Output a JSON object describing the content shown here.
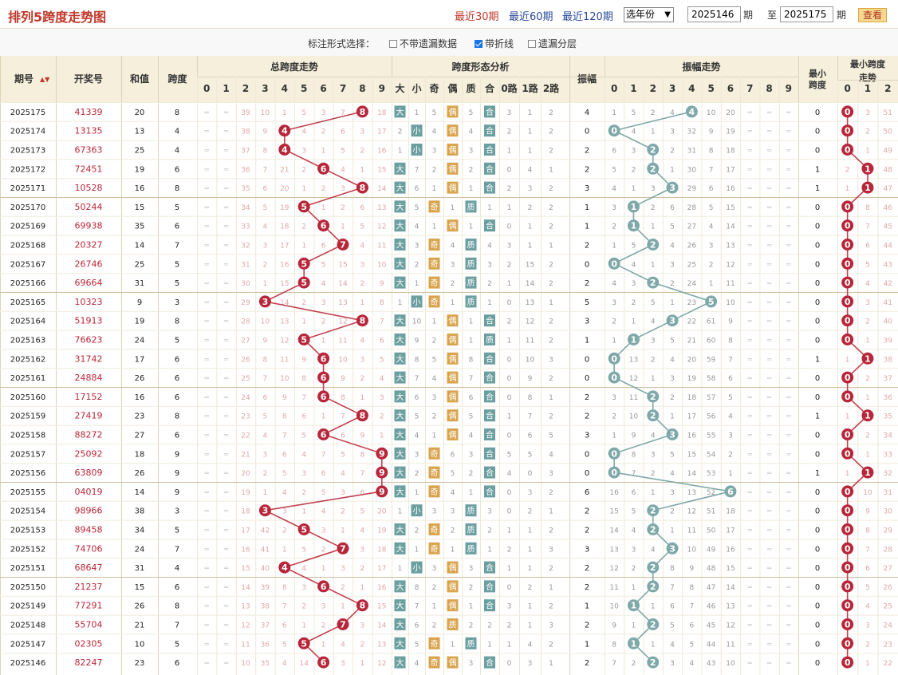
{
  "title": "排列5跨度走势图",
  "links": [
    {
      "label": "最近30期",
      "active": true
    },
    {
      "label": "最近60期",
      "active": false
    },
    {
      "label": "最近120期",
      "active": false
    }
  ],
  "year_select": "选年份",
  "period_from": "2025146",
  "period_to": "2025175",
  "label_qi": "期",
  "label_zhi": "至",
  "query_button": "查看",
  "options_label": "标注形式选择：",
  "options": [
    {
      "label": "不带遗漏数据",
      "checked": false
    },
    {
      "label": "带折线",
      "checked": true
    },
    {
      "label": "遗漏分层",
      "checked": false
    }
  ],
  "headers": {
    "period": "期号",
    "sort_icon": "sort-arrows-icon",
    "draw": "开奖号",
    "sum": "和值",
    "span": "跨度",
    "span_trend": "总跨度走势",
    "shape": "跨度形态分析",
    "amp": "振幅",
    "amp_trend": "振幅走势",
    "min_span": "最小跨度",
    "min_trend": "最小跨度走势"
  },
  "digits": [
    "0",
    "1",
    "2",
    "3",
    "4",
    "5",
    "6",
    "7",
    "8",
    "9"
  ],
  "shape_cols": [
    "大",
    "小",
    "奇",
    "偶",
    "质",
    "合",
    "0路",
    "1路",
    "2路"
  ],
  "min_digits": [
    "0",
    "1",
    "2"
  ],
  "colors": {
    "red": "#b8263a",
    "teal": "#7fa8a8",
    "big": "#6b9fa0",
    "odd": "#d9a44d",
    "grid": "#e9dfc8",
    "header": "#f5efdb"
  },
  "rows": [
    {
      "p": "2025175",
      "d": "41339",
      "s": "20",
      "k": "8",
      "ko": [
        2,
        2,
        39,
        10,
        1,
        5,
        3,
        7,
        0,
        18
      ],
      "sh": [
        "大",
        "1",
        "5",
        "偶",
        "5",
        "合",
        "3",
        "1",
        "2"
      ],
      "a": "4",
      "ao": [
        1,
        5,
        2,
        4,
        0,
        10,
        20,
        2,
        2,
        2
      ],
      "m": "0",
      "mo": [
        0,
        3,
        51
      ]
    },
    {
      "p": "2025174",
      "d": "13135",
      "s": "13",
      "k": "4",
      "ko": [
        2,
        2,
        38,
        9,
        0,
        4,
        2,
        6,
        3,
        17
      ],
      "sh": [
        "2",
        "小",
        "4",
        "偶",
        "4",
        "合",
        "2",
        "1",
        "2"
      ],
      "a": "0",
      "ao": [
        0,
        4,
        1,
        3,
        32,
        9,
        19,
        2,
        2,
        2
      ],
      "m": "0",
      "mo": [
        0,
        2,
        50
      ]
    },
    {
      "p": "2025173",
      "d": "67363",
      "s": "25",
      "k": "4",
      "ko": [
        2,
        2,
        37,
        8,
        0,
        3,
        1,
        5,
        2,
        16
      ],
      "sh": [
        "1",
        "小",
        "3",
        "偶",
        "3",
        "合",
        "1",
        "1",
        "2"
      ],
      "a": "2",
      "ao": [
        6,
        3,
        0,
        2,
        31,
        8,
        18,
        2,
        2,
        2
      ],
      "m": "0",
      "mo": [
        0,
        1,
        49
      ]
    },
    {
      "p": "2025172",
      "d": "72451",
      "s": "19",
      "k": "6",
      "ko": [
        2,
        2,
        36,
        7,
        21,
        2,
        0,
        4,
        1,
        15
      ],
      "sh": [
        "大",
        "7",
        "2",
        "偶",
        "2",
        "合",
        "0",
        "4",
        "1"
      ],
      "a": "2",
      "ao": [
        5,
        2,
        0,
        1,
        30,
        7,
        17,
        2,
        2,
        2
      ],
      "m": "1",
      "mo": [
        2,
        0,
        48
      ]
    },
    {
      "p": "2025171",
      "d": "10528",
      "s": "16",
      "k": "8",
      "ko": [
        2,
        2,
        35,
        6,
        20,
        1,
        2,
        3,
        0,
        14
      ],
      "sh": [
        "大",
        "6",
        "1",
        "偶",
        "1",
        "合",
        "2",
        "3",
        "2"
      ],
      "a": "3",
      "ao": [
        4,
        1,
        3,
        0,
        29,
        6,
        16,
        2,
        2,
        2
      ],
      "m": "1",
      "mo": [
        1,
        0,
        47
      ]
    },
    {
      "p": "2025170",
      "d": "50244",
      "s": "15",
      "k": "5",
      "ko": [
        2,
        2,
        34,
        5,
        19,
        0,
        1,
        2,
        6,
        13
      ],
      "sh": [
        "大",
        "5",
        "奇",
        "1",
        "质",
        "1",
        "1",
        "2",
        "2"
      ],
      "a": "1",
      "ao": [
        3,
        0,
        2,
        6,
        28,
        5,
        15,
        2,
        2,
        2
      ],
      "m": "0",
      "mo": [
        0,
        8,
        46
      ]
    },
    {
      "p": "2025169",
      "d": "69938",
      "s": "35",
      "k": "6",
      "ko": [
        2,
        2,
        33,
        4,
        18,
        2,
        0,
        1,
        5,
        12
      ],
      "sh": [
        "大",
        "4",
        "1",
        "偶",
        "1",
        "合",
        "0",
        "1",
        "2"
      ],
      "a": "1",
      "ao": [
        2,
        0,
        1,
        5,
        27,
        4,
        14,
        2,
        2,
        2
      ],
      "m": "0",
      "mo": [
        0,
        7,
        45
      ]
    },
    {
      "p": "2025168",
      "d": "20327",
      "s": "14",
      "k": "7",
      "ko": [
        2,
        2,
        32,
        3,
        17,
        1,
        6,
        0,
        4,
        11
      ],
      "sh": [
        "大",
        "3",
        "奇",
        "4",
        "质",
        "4",
        "3",
        "1",
        "1"
      ],
      "a": "2",
      "ao": [
        1,
        5,
        0,
        4,
        26,
        3,
        13,
        2,
        2,
        2
      ],
      "m": "0",
      "mo": [
        0,
        6,
        44
      ]
    },
    {
      "p": "2025167",
      "d": "26746",
      "s": "25",
      "k": "5",
      "ko": [
        2,
        2,
        31,
        2,
        16,
        0,
        5,
        15,
        3,
        10
      ],
      "sh": [
        "大",
        "2",
        "奇",
        "3",
        "质",
        "3",
        "2",
        "15",
        "2"
      ],
      "a": "0",
      "ao": [
        0,
        4,
        1,
        3,
        25,
        2,
        12,
        2,
        2,
        2
      ],
      "m": "0",
      "mo": [
        0,
        5,
        43
      ]
    },
    {
      "p": "2025166",
      "d": "69664",
      "s": "31",
      "k": "5",
      "ko": [
        2,
        2,
        30,
        1,
        15,
        0,
        4,
        14,
        2,
        9
      ],
      "sh": [
        "大",
        "1",
        "奇",
        "2",
        "质",
        "2",
        "1",
        "14",
        "2"
      ],
      "a": "2",
      "ao": [
        4,
        3,
        0,
        2,
        24,
        1,
        11,
        2,
        2,
        2
      ],
      "m": "0",
      "mo": [
        0,
        4,
        42
      ]
    },
    {
      "p": "2025165",
      "d": "10323",
      "s": "9",
      "k": "3",
      "ko": [
        2,
        2,
        29,
        0,
        14,
        2,
        3,
        13,
        1,
        8
      ],
      "sh": [
        "1",
        "小",
        "奇",
        "1",
        "质",
        "1",
        "0",
        "13",
        "1"
      ],
      "a": "5",
      "ao": [
        3,
        2,
        5,
        1,
        23,
        0,
        10,
        2,
        2,
        2
      ],
      "m": "0",
      "mo": [
        0,
        3,
        41
      ]
    },
    {
      "p": "2025164",
      "d": "51913",
      "s": "19",
      "k": "8",
      "ko": [
        2,
        2,
        28,
        10,
        13,
        1,
        2,
        12,
        0,
        7
      ],
      "sh": [
        "大",
        "10",
        "1",
        "偶",
        "1",
        "合",
        "2",
        "12",
        "2"
      ],
      "a": "3",
      "ao": [
        2,
        1,
        4,
        0,
        22,
        61,
        9,
        2,
        2,
        2
      ],
      "m": "0",
      "mo": [
        0,
        2,
        40
      ]
    },
    {
      "p": "2025163",
      "d": "76623",
      "s": "24",
      "k": "5",
      "ko": [
        2,
        2,
        27,
        9,
        12,
        0,
        1,
        11,
        4,
        6
      ],
      "sh": [
        "大",
        "9",
        "2",
        "偶",
        "1",
        "质",
        "1",
        "11",
        "2"
      ],
      "a": "1",
      "ao": [
        1,
        0,
        3,
        5,
        21,
        60,
        8,
        2,
        2,
        2
      ],
      "m": "0",
      "mo": [
        0,
        1,
        39
      ]
    },
    {
      "p": "2025162",
      "d": "31742",
      "s": "17",
      "k": "6",
      "ko": [
        2,
        2,
        26,
        8,
        11,
        9,
        0,
        10,
        3,
        5
      ],
      "sh": [
        "大",
        "8",
        "5",
        "偶",
        "8",
        "合",
        "0",
        "10",
        "3"
      ],
      "a": "0",
      "ao": [
        0,
        13,
        2,
        4,
        20,
        59,
        7,
        2,
        2,
        2
      ],
      "m": "1",
      "mo": [
        1,
        0,
        38
      ]
    },
    {
      "p": "2025161",
      "d": "24884",
      "s": "26",
      "k": "6",
      "ko": [
        2,
        2,
        25,
        7,
        10,
        8,
        0,
        9,
        2,
        4
      ],
      "sh": [
        "大",
        "7",
        "4",
        "偶",
        "7",
        "合",
        "0",
        "9",
        "2"
      ],
      "a": "0",
      "ao": [
        0,
        12,
        1,
        3,
        19,
        58,
        6,
        2,
        2,
        2
      ],
      "m": "0",
      "mo": [
        0,
        2,
        37
      ]
    },
    {
      "p": "2025160",
      "d": "17152",
      "s": "16",
      "k": "6",
      "ko": [
        2,
        2,
        24,
        6,
        9,
        7,
        0,
        8,
        1,
        3
      ],
      "sh": [
        "大",
        "6",
        "3",
        "偶",
        "6",
        "合",
        "0",
        "8",
        "1"
      ],
      "a": "2",
      "ao": [
        3,
        11,
        0,
        2,
        18,
        57,
        5,
        2,
        2,
        2
      ],
      "m": "0",
      "mo": [
        0,
        1,
        36
      ]
    },
    {
      "p": "2025159",
      "d": "27419",
      "s": "23",
      "k": "8",
      "ko": [
        2,
        2,
        23,
        5,
        8,
        6,
        1,
        7,
        0,
        2
      ],
      "sh": [
        "大",
        "5",
        "2",
        "偶",
        "5",
        "合",
        "1",
        "7",
        "2"
      ],
      "a": "2",
      "ao": [
        2,
        10,
        0,
        1,
        17,
        56,
        4,
        2,
        2,
        2
      ],
      "m": "1",
      "mo": [
        1,
        0,
        35
      ]
    },
    {
      "p": "2025158",
      "d": "88272",
      "s": "27",
      "k": "6",
      "ko": [
        2,
        2,
        22,
        4,
        7,
        5,
        0,
        6,
        9,
        1
      ],
      "sh": [
        "大",
        "4",
        "1",
        "偶",
        "4",
        "合",
        "0",
        "6",
        "5"
      ],
      "a": "3",
      "ao": [
        1,
        9,
        4,
        0,
        16,
        55,
        3,
        2,
        2,
        2
      ],
      "m": "0",
      "mo": [
        0,
        2,
        34
      ]
    },
    {
      "p": "2025157",
      "d": "25092",
      "s": "18",
      "k": "9",
      "ko": [
        2,
        2,
        21,
        3,
        6,
        4,
        7,
        5,
        8,
        0
      ],
      "sh": [
        "大",
        "3",
        "奇",
        "6",
        "3",
        "合",
        "5",
        "5",
        "4"
      ],
      "a": "0",
      "ao": [
        0,
        8,
        3,
        5,
        15,
        54,
        2,
        2,
        2,
        2
      ],
      "m": "0",
      "mo": [
        0,
        1,
        33
      ]
    },
    {
      "p": "2025156",
      "d": "63809",
      "s": "26",
      "k": "9",
      "ko": [
        2,
        2,
        20,
        2,
        5,
        3,
        6,
        4,
        7,
        0
      ],
      "sh": [
        "大",
        "2",
        "奇",
        "5",
        "2",
        "合",
        "4",
        "0",
        "3"
      ],
      "a": "0",
      "ao": [
        0,
        7,
        2,
        4,
        14,
        53,
        1,
        2,
        2,
        2
      ],
      "m": "1",
      "mo": [
        1,
        0,
        32
      ]
    },
    {
      "p": "2025155",
      "d": "04019",
      "s": "14",
      "k": "9",
      "ko": [
        2,
        2,
        19,
        1,
        4,
        2,
        5,
        3,
        6,
        0
      ],
      "sh": [
        "大",
        "1",
        "奇",
        "4",
        "1",
        "合",
        "0",
        "3",
        "2"
      ],
      "a": "6",
      "ao": [
        16,
        6,
        1,
        3,
        13,
        52,
        0,
        2,
        2,
        2
      ],
      "m": "0",
      "mo": [
        0,
        10,
        31
      ]
    },
    {
      "p": "2025154",
      "d": "98966",
      "s": "38",
      "k": "3",
      "ko": [
        2,
        2,
        18,
        0,
        3,
        1,
        4,
        2,
        5,
        20
      ],
      "sh": [
        "1",
        "小",
        "3",
        "3",
        "质",
        "3",
        "0",
        "2",
        "1"
      ],
      "a": "2",
      "ao": [
        15,
        5,
        0,
        2,
        12,
        51,
        18,
        2,
        2,
        2
      ],
      "m": "0",
      "mo": [
        0,
        9,
        30
      ]
    },
    {
      "p": "2025153",
      "d": "89458",
      "s": "34",
      "k": "5",
      "ko": [
        2,
        2,
        17,
        42,
        2,
        0,
        3,
        1,
        4,
        19
      ],
      "sh": [
        "大",
        "2",
        "奇",
        "2",
        "质",
        "2",
        "1",
        "1",
        "2"
      ],
      "a": "2",
      "ao": [
        14,
        4,
        0,
        1,
        11,
        50,
        17,
        2,
        2,
        2
      ],
      "m": "0",
      "mo": [
        0,
        8,
        29
      ]
    },
    {
      "p": "2025152",
      "d": "74706",
      "s": "24",
      "k": "7",
      "ko": [
        2,
        2,
        16,
        41,
        1,
        5,
        2,
        0,
        3,
        18
      ],
      "sh": [
        "大",
        "1",
        "奇",
        "1",
        "质",
        "1",
        "2",
        "1",
        "3"
      ],
      "a": "3",
      "ao": [
        13,
        3,
        4,
        0,
        10,
        49,
        16,
        2,
        2,
        2
      ],
      "m": "0",
      "mo": [
        0,
        7,
        28
      ]
    },
    {
      "p": "2025151",
      "d": "68647",
      "s": "31",
      "k": "4",
      "ko": [
        2,
        2,
        15,
        40,
        0,
        4,
        1,
        3,
        2,
        17
      ],
      "sh": [
        "1",
        "小",
        "3",
        "偶",
        "3",
        "合",
        "1",
        "1",
        "2"
      ],
      "a": "2",
      "ao": [
        12,
        2,
        0,
        8,
        9,
        48,
        15,
        2,
        2,
        2
      ],
      "m": "0",
      "mo": [
        0,
        6,
        27
      ]
    },
    {
      "p": "2025150",
      "d": "21237",
      "s": "15",
      "k": "6",
      "ko": [
        2,
        2,
        14,
        39,
        8,
        3,
        0,
        2,
        1,
        16
      ],
      "sh": [
        "大",
        "8",
        "2",
        "偶",
        "2",
        "合",
        "0",
        "2",
        "1"
      ],
      "a": "2",
      "ao": [
        11,
        1,
        0,
        7,
        8,
        47,
        14,
        2,
        2,
        2
      ],
      "m": "0",
      "mo": [
        0,
        5,
        26
      ]
    },
    {
      "p": "2025149",
      "d": "77291",
      "s": "26",
      "k": "8",
      "ko": [
        2,
        2,
        13,
        38,
        7,
        2,
        3,
        1,
        0,
        15
      ],
      "sh": [
        "大",
        "7",
        "1",
        "偶",
        "1",
        "合",
        "3",
        "1",
        "2"
      ],
      "a": "1",
      "ao": [
        10,
        0,
        1,
        6,
        7,
        46,
        13,
        2,
        2,
        2
      ],
      "m": "0",
      "mo": [
        0,
        4,
        25
      ]
    },
    {
      "p": "2025148",
      "d": "55704",
      "s": "21",
      "k": "7",
      "ko": [
        2,
        2,
        12,
        37,
        6,
        1,
        2,
        0,
        3,
        14
      ],
      "sh": [
        "大",
        "6",
        "2",
        "质",
        "2",
        "2",
        "2",
        "1",
        "3"
      ],
      "a": "2",
      "ao": [
        9,
        1,
        0,
        5,
        6,
        45,
        12,
        2,
        2,
        2
      ],
      "m": "0",
      "mo": [
        0,
        3,
        24
      ]
    },
    {
      "p": "2025147",
      "d": "02305",
      "s": "10",
      "k": "5",
      "ko": [
        2,
        2,
        11,
        36,
        5,
        0,
        1,
        4,
        2,
        13
      ],
      "sh": [
        "大",
        "5",
        "奇",
        "1",
        "质",
        "1",
        "1",
        "4",
        "2"
      ],
      "a": "1",
      "ao": [
        8,
        0,
        1,
        4,
        5,
        44,
        11,
        2,
        2,
        2
      ],
      "m": "0",
      "mo": [
        0,
        2,
        23
      ]
    },
    {
      "p": "2025146",
      "d": "82247",
      "s": "23",
      "k": "6",
      "ko": [
        2,
        2,
        10,
        35,
        4,
        14,
        0,
        3,
        1,
        12
      ],
      "sh": [
        "大",
        "4",
        "奇",
        "偶",
        "3",
        "合",
        "0",
        "3",
        "1"
      ],
      "a": "2",
      "ao": [
        7,
        2,
        0,
        3,
        4,
        43,
        10,
        2,
        2,
        2
      ],
      "m": "0",
      "mo": [
        0,
        1,
        22
      ]
    }
  ]
}
